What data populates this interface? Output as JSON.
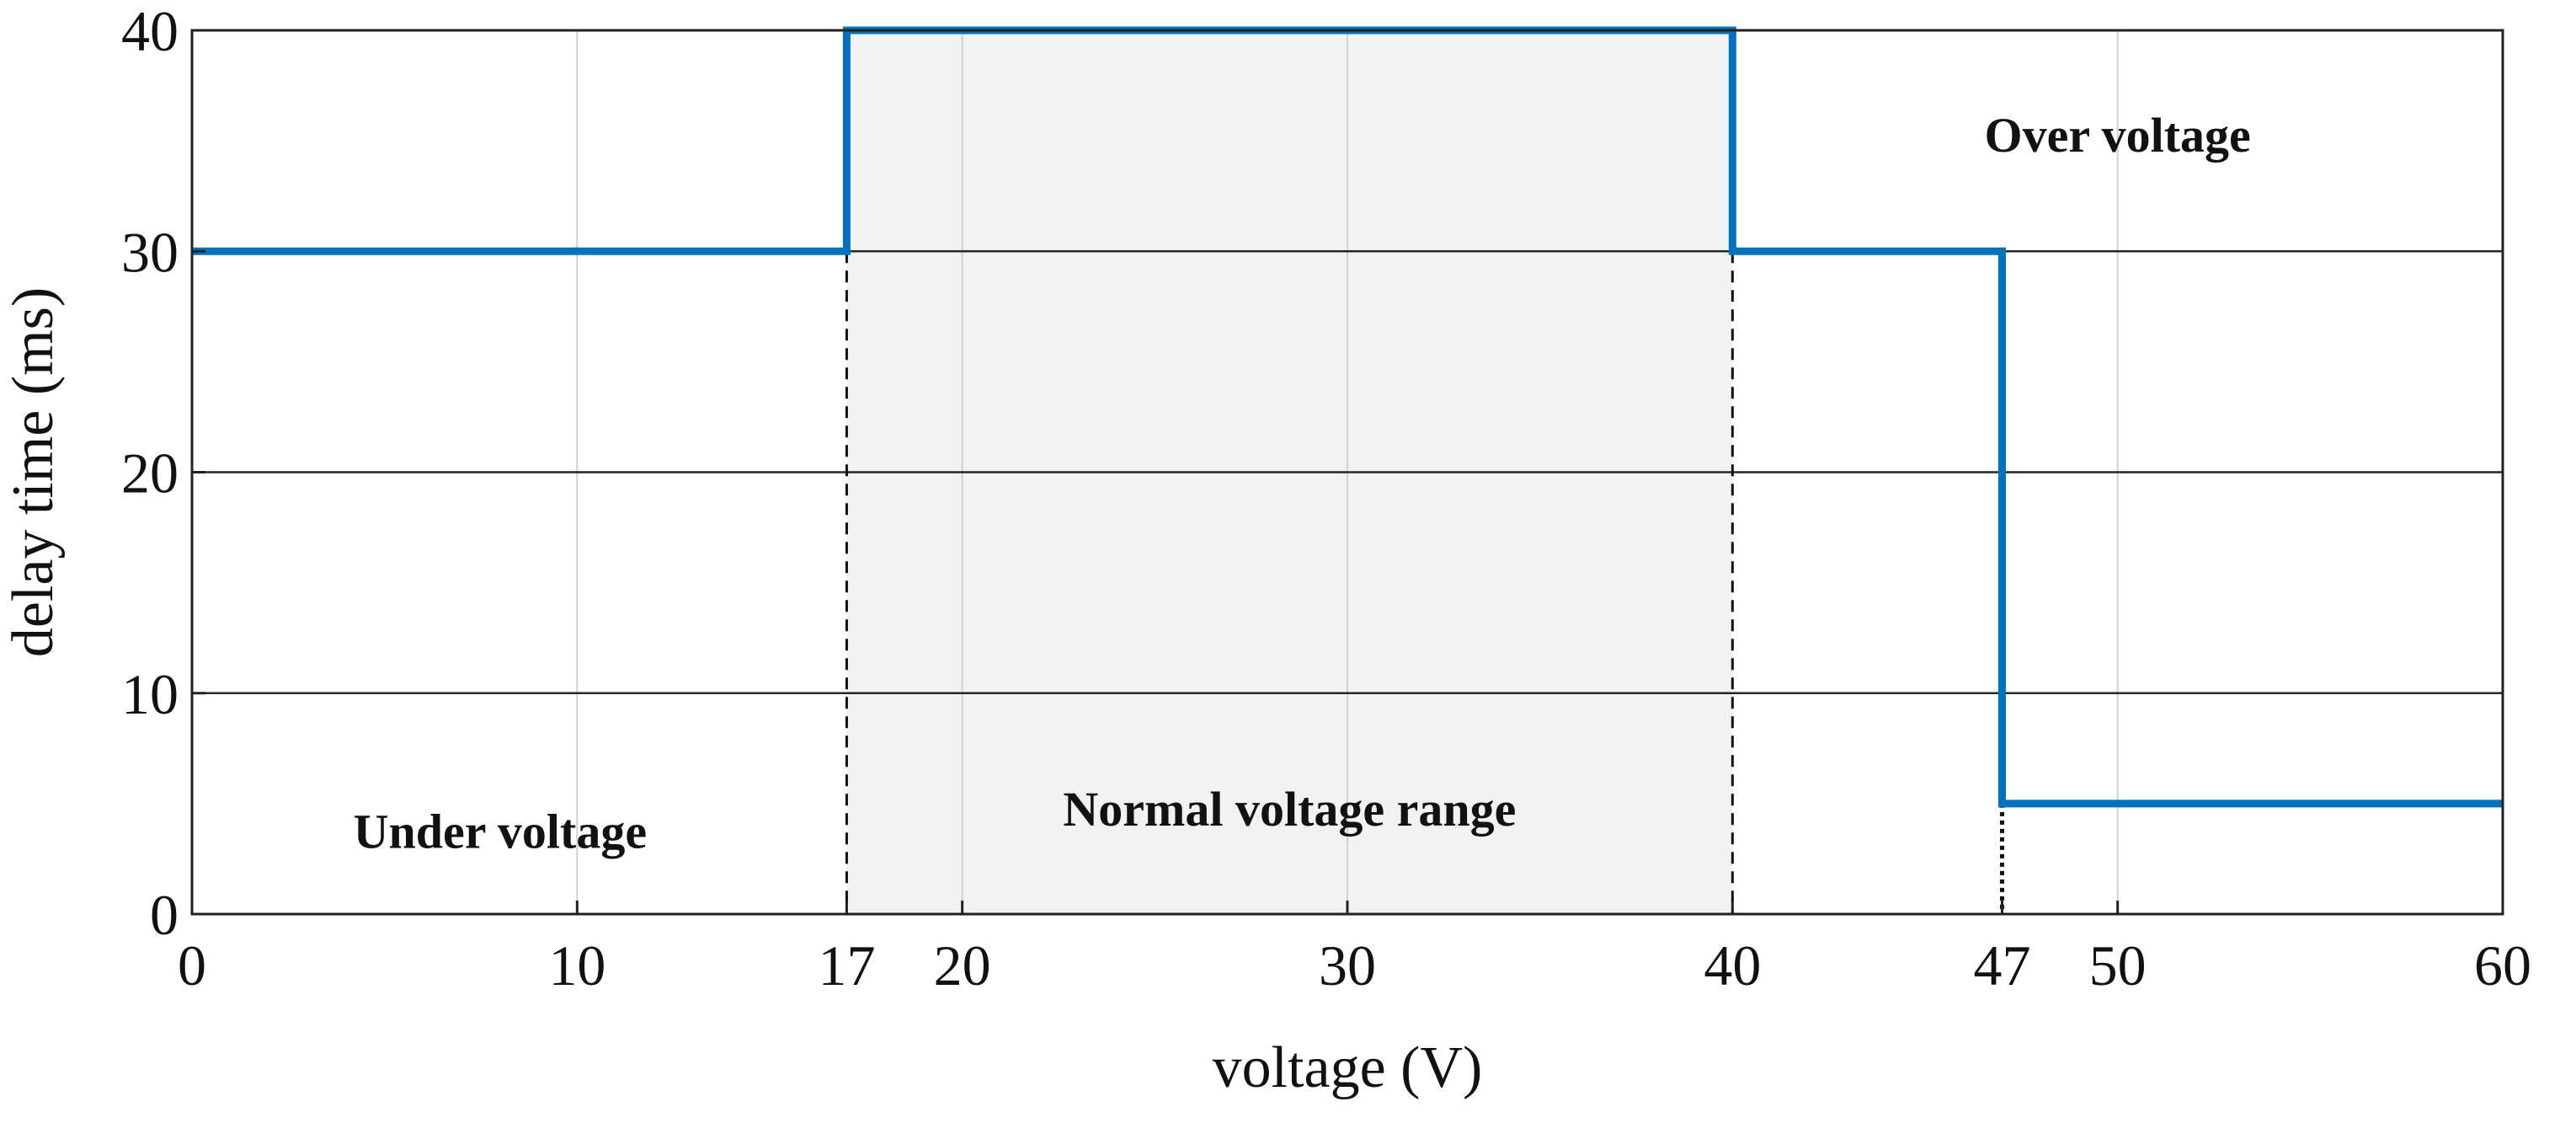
{
  "chart_data": {
    "type": "line",
    "xlabel": "voltage (V)",
    "ylabel": "delay time (ms)",
    "xlim": [
      0,
      60
    ],
    "ylim": [
      0,
      40
    ],
    "x_ticks": [
      0,
      10,
      17,
      20,
      30,
      40,
      47,
      50,
      60
    ],
    "y_ticks": [
      0,
      10,
      20,
      30,
      40
    ],
    "grid": true,
    "line_color": "#0072BD",
    "series": [
      {
        "x": [
          0,
          17,
          17,
          40,
          40,
          47,
          47,
          60
        ],
        "y": [
          30,
          30,
          40,
          40,
          30,
          30,
          5,
          5
        ]
      }
    ],
    "shaded_region": {
      "x": [
        17,
        40
      ],
      "color": "#f2f2f2"
    },
    "reference_lines": [
      {
        "x": 17,
        "style": "dashed"
      },
      {
        "x": 40,
        "style": "dashed"
      },
      {
        "x": 47,
        "style": "dotted"
      }
    ],
    "annotations": [
      {
        "text": "Under voltage",
        "x": 8,
        "y": 3
      },
      {
        "text": "Normal voltage range",
        "x": 28.5,
        "y": 4
      },
      {
        "text": "Over voltage",
        "x": 50,
        "y": 34.5
      }
    ]
  }
}
